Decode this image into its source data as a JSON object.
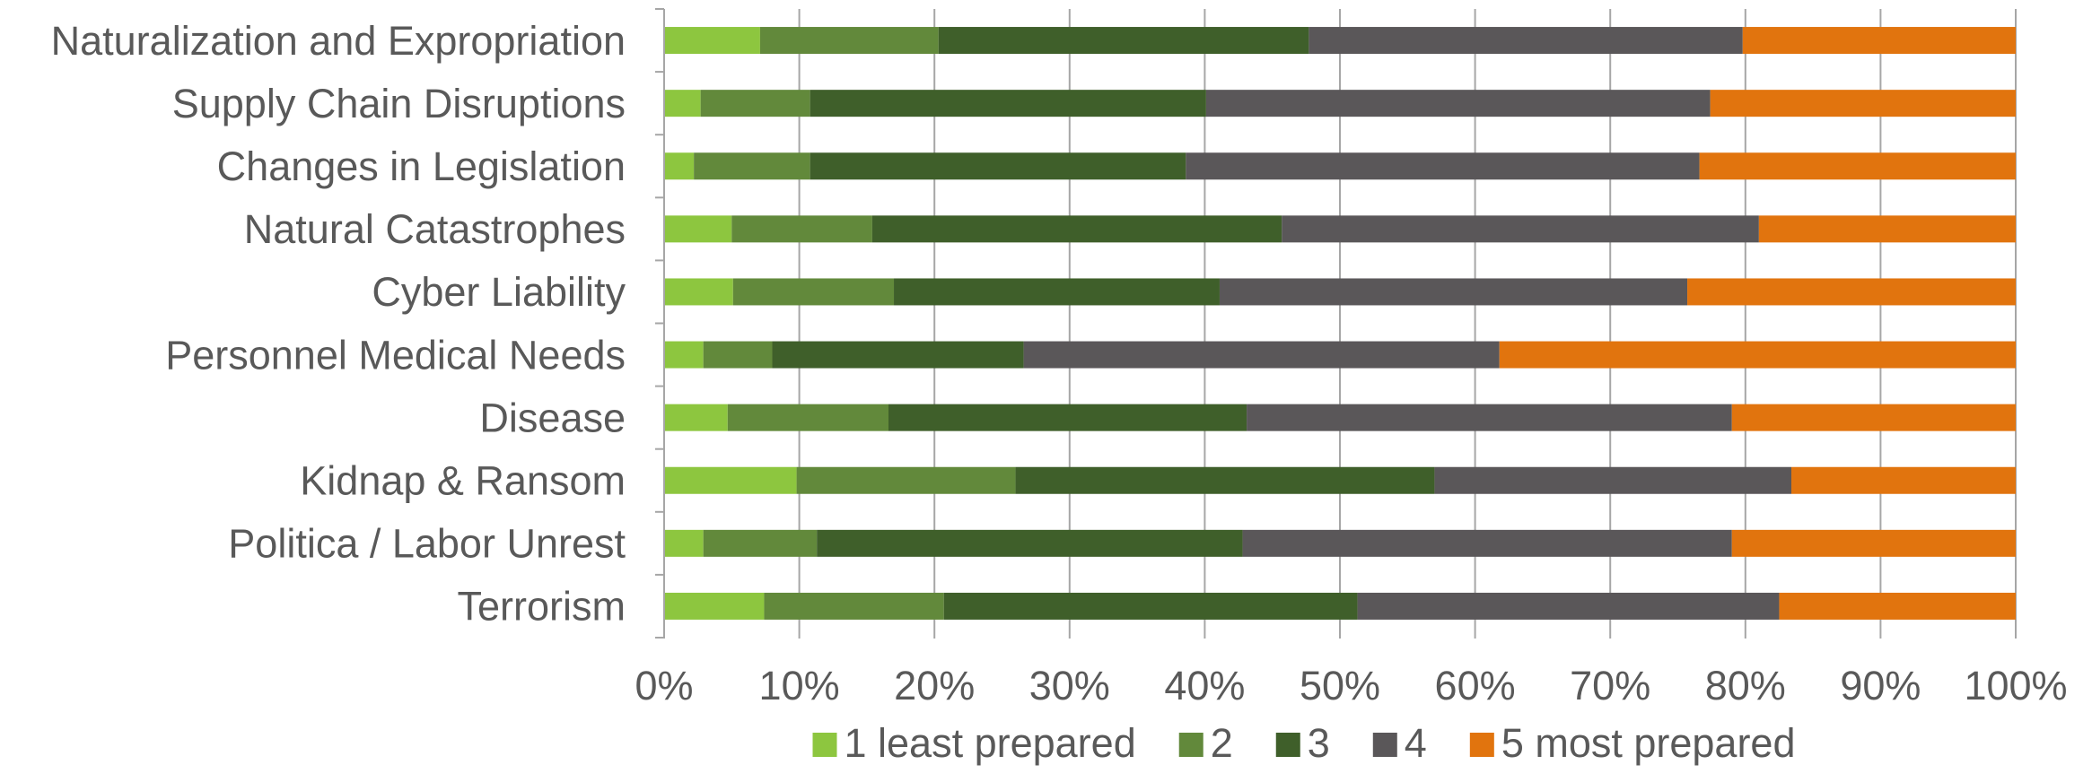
{
  "chart_data": {
    "type": "bar",
    "orientation": "horizontal",
    "stacked": true,
    "percent_stacked": true,
    "title": "",
    "xlabel": "",
    "ylabel": "",
    "xlim": [
      0,
      100
    ],
    "x_ticks": [
      "0%",
      "10%",
      "20%",
      "30%",
      "40%",
      "50%",
      "60%",
      "70%",
      "80%",
      "90%",
      "100%"
    ],
    "grid": true,
    "legend_position": "bottom",
    "categories": [
      "Naturalization and Expropriation",
      "Supply Chain Disruptions",
      "Changes in Legislation",
      "Natural Catastrophes",
      "Cyber Liability",
      "Personnel Medical Needs",
      "Disease",
      "Kidnap & Ransom",
      "Politica / Labor Unrest",
      "Terrorism"
    ],
    "series": [
      {
        "name": "1 least prepared",
        "color": "#8dc63f",
        "values": [
          7.1,
          2.7,
          2.2,
          5.0,
          5.1,
          2.9,
          4.7,
          9.8,
          2.9,
          7.4
        ]
      },
      {
        "name": "2",
        "color": "#62893b",
        "values": [
          13.2,
          8.1,
          8.6,
          10.4,
          11.9,
          5.1,
          11.9,
          16.2,
          8.4,
          13.3
        ]
      },
      {
        "name": "3",
        "color": "#3f5f2a",
        "values": [
          27.4,
          29.3,
          27.8,
          30.3,
          24.1,
          18.6,
          26.5,
          31.0,
          31.5,
          30.6
        ]
      },
      {
        "name": "4",
        "color": "#5a5759",
        "values": [
          32.1,
          37.3,
          38.0,
          35.3,
          34.6,
          35.2,
          35.9,
          26.4,
          36.2,
          31.2
        ]
      },
      {
        "name": "5 most prepared",
        "color": "#e1740e",
        "values": [
          20.2,
          22.6,
          23.4,
          19.0,
          24.3,
          38.2,
          21.0,
          16.6,
          21.0,
          17.5
        ]
      }
    ]
  }
}
